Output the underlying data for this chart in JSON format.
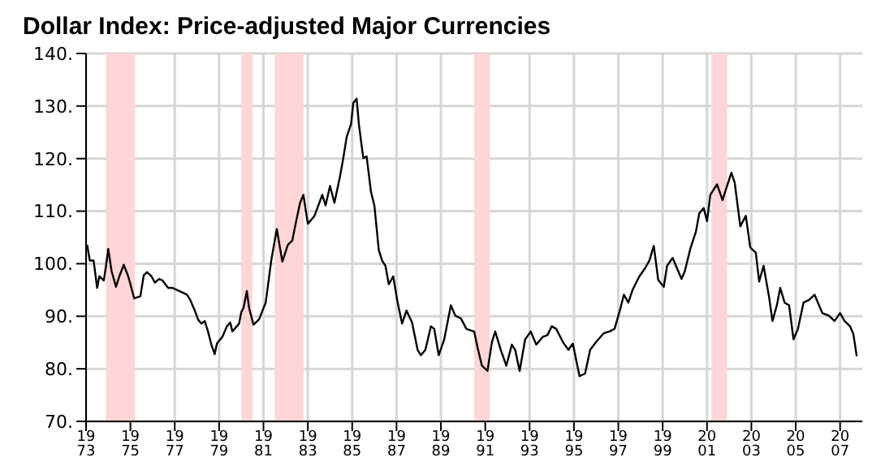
{
  "chart_data": {
    "type": "line",
    "title": "Dollar Index: Price-adjusted Major Currencies",
    "xlim": [
      1973,
      2008
    ],
    "xticks": [
      1973,
      1975,
      1977,
      1979,
      1981,
      1983,
      1985,
      1987,
      1989,
      1991,
      1993,
      1995,
      1997,
      1999,
      2001,
      2003,
      2005,
      2007
    ],
    "ylim": [
      70,
      140
    ],
    "yticks": [
      {
        "value": 70,
        "label": "70."
      },
      {
        "value": 80,
        "label": "80."
      },
      {
        "value": 90,
        "label": "90."
      },
      {
        "value": 100,
        "label": "100."
      },
      {
        "value": 110,
        "label": "110."
      },
      {
        "value": 120,
        "label": "120."
      },
      {
        "value": 130,
        "label": "130."
      },
      {
        "value": 140,
        "label": "140."
      }
    ],
    "grid": true,
    "marker": "none",
    "line_style": "solid",
    "bands": [
      {
        "axis": "x",
        "from": 1973.9,
        "to": 1975.2,
        "color": "#ffd5d5"
      },
      {
        "axis": "x",
        "from": 1980.0,
        "to": 1980.5,
        "color": "#ffd5d5"
      },
      {
        "axis": "x",
        "from": 1981.5,
        "to": 1982.8,
        "color": "#ffd5d5"
      },
      {
        "axis": "x",
        "from": 1990.5,
        "to": 1991.2,
        "color": "#ffd5d5"
      },
      {
        "axis": "x",
        "from": 2001.2,
        "to": 2001.9,
        "color": "#ffd5d5"
      }
    ],
    "series": [
      {
        "color": "#000000",
        "x": [
          1973.05,
          1973.17,
          1973.34,
          1973.5,
          1973.6,
          1973.8,
          1973.9,
          1974.0,
          1974.15,
          1974.35,
          1974.5,
          1974.7,
          1974.9,
          1975.0,
          1975.17,
          1975.45,
          1975.6,
          1975.75,
          1975.95,
          1976.1,
          1976.3,
          1976.45,
          1976.7,
          1976.9,
          1977.2,
          1977.55,
          1977.7,
          1977.9,
          1978.05,
          1978.2,
          1978.35,
          1978.5,
          1978.65,
          1978.8,
          1978.9,
          1979.15,
          1979.35,
          1979.5,
          1979.6,
          1979.9,
          1980.0,
          1980.1,
          1980.25,
          1980.35,
          1980.55,
          1980.8,
          1981.1,
          1981.35,
          1981.6,
          1981.85,
          1982.1,
          1982.3,
          1982.45,
          1982.65,
          1982.8,
          1983.0,
          1983.3,
          1983.65,
          1983.8,
          1984.0,
          1984.2,
          1984.45,
          1984.6,
          1984.75,
          1984.95,
          1985.05,
          1985.2,
          1985.3,
          1985.5,
          1985.65,
          1985.85,
          1986.0,
          1986.2,
          1986.35,
          1986.5,
          1986.65,
          1986.85,
          1987.05,
          1987.25,
          1987.45,
          1987.7,
          1987.95,
          1988.1,
          1988.3,
          1988.55,
          1988.7,
          1988.9,
          1989.15,
          1989.45,
          1989.65,
          1989.9,
          1990.15,
          1990.5,
          1990.65,
          1990.85,
          1991.1,
          1991.3,
          1991.45,
          1991.7,
          1991.95,
          1992.2,
          1992.35,
          1992.55,
          1992.8,
          1993.05,
          1993.3,
          1993.6,
          1993.8,
          1994.0,
          1994.2,
          1994.5,
          1994.75,
          1994.95,
          1995.25,
          1995.5,
          1995.73,
          1996.0,
          1996.35,
          1996.6,
          1996.83,
          1997.07,
          1997.25,
          1997.45,
          1997.65,
          1997.95,
          1998.2,
          1998.4,
          1998.6,
          1998.8,
          1999.05,
          1999.2,
          1999.45,
          1999.7,
          1999.85,
          2000.0,
          2000.25,
          2000.5,
          2000.65,
          2000.85,
          2001.0,
          2001.15,
          2001.45,
          2001.7,
          2001.85,
          2002.1,
          2002.25,
          2002.5,
          2002.75,
          2002.95,
          2003.2,
          2003.35,
          2003.55,
          2003.8,
          2003.95,
          2004.15,
          2004.3,
          2004.5,
          2004.7,
          2004.9,
          2005.1,
          2005.35,
          2005.6,
          2005.85,
          2006.0,
          2006.2,
          2006.5,
          2006.75,
          2007.0,
          2007.2,
          2007.45,
          2007.6,
          2007.75
        ],
        "values": [
          103.6,
          100.6,
          100.6,
          95.4,
          97.6,
          96.8,
          99.6,
          102.8,
          98.6,
          95.6,
          97.6,
          99.8,
          97.6,
          96.1,
          93.4,
          93.8,
          97.8,
          98.4,
          97.6,
          96.4,
          97.1,
          96.8,
          95.4,
          95.4,
          94.8,
          94.1,
          93.1,
          91.1,
          89.4,
          88.6,
          89.1,
          87.1,
          84.6,
          82.8,
          84.8,
          86.1,
          88.1,
          88.8,
          87.1,
          88.6,
          90.8,
          91.6,
          94.8,
          91.6,
          88.4,
          89.4,
          92.6,
          100.6,
          106.6,
          100.4,
          103.6,
          104.4,
          107.6,
          111.6,
          113.1,
          107.6,
          109.1,
          113.1,
          111.1,
          114.8,
          111.6,
          116.6,
          120.1,
          124.1,
          126.6,
          130.6,
          131.4,
          126.6,
          120.1,
          120.4,
          113.6,
          111.1,
          102.6,
          100.6,
          99.6,
          96.1,
          97.6,
          92.6,
          88.6,
          91.1,
          88.8,
          83.6,
          82.6,
          83.6,
          88.1,
          87.6,
          82.6,
          85.6,
          92.1,
          90.1,
          89.6,
          87.6,
          87.1,
          84.1,
          80.6,
          79.6,
          85.1,
          87.1,
          83.6,
          80.6,
          84.6,
          83.6,
          79.6,
          85.6,
          87.1,
          84.6,
          86.1,
          86.4,
          88.1,
          87.6,
          85.1,
          83.6,
          84.8,
          78.6,
          79.1,
          83.6,
          85.1,
          86.8,
          87.1,
          87.6,
          91.1,
          94.1,
          92.6,
          95.1,
          97.6,
          99.1,
          100.6,
          103.4,
          96.9,
          95.6,
          99.6,
          101.1,
          98.6,
          97.1,
          98.6,
          102.9,
          106.1,
          109.6,
          110.6,
          108.1,
          113.1,
          115.1,
          112.1,
          114.1,
          117.3,
          115.4,
          107.1,
          109.1,
          103.1,
          102.1,
          96.6,
          99.6,
          93.6,
          89.1,
          92.1,
          95.4,
          92.6,
          92.1,
          85.6,
          87.6,
          92.6,
          93.1,
          94.1,
          92.6,
          90.6,
          90.1,
          89.1,
          90.6,
          89.1,
          88.1,
          86.6,
          82.4
        ]
      }
    ]
  }
}
